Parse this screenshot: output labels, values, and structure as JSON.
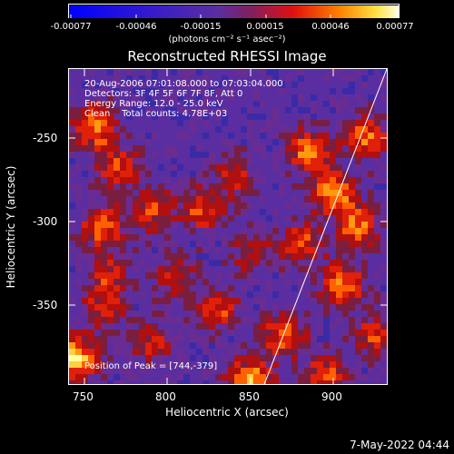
{
  "colorbar": {
    "tick_labels": [
      "-0.00077",
      "-0.00046",
      "-0.00015",
      "0.00015",
      "0.00046",
      "0.00077"
    ],
    "unit_label": "(photons cm⁻² s⁻¹ asec⁻²)"
  },
  "plot": {
    "title": "Reconstructed RHESSI Image",
    "xlabel": "Heliocentric X (arcsec)",
    "ylabel": "Heliocentric Y (arcsec)",
    "x_ticks": [
      "750",
      "800",
      "850",
      "900"
    ],
    "y_ticks": [
      "-250",
      "-300",
      "-350"
    ],
    "info_lines": [
      "20-Aug-2006 07:01:08.000 to 07:03:04.000",
      "Detectors: 3F 4F 5F 6F 7F 8F, Att 0",
      "Energy Range: 12.0 - 25.0 keV",
      "Clean    Total counts: 4.78E+03"
    ],
    "peak_label": "Position of Peak = [744,-379]"
  },
  "footer": {
    "date": "7-May-2022 04:44"
  },
  "colors": {
    "background": "#000000",
    "negative_low": "#0000ff",
    "purple": "#5a2ea0",
    "red": "#cc1010",
    "orange": "#ff7a00",
    "yellow": "#ffff90"
  },
  "chart_data": {
    "type": "heatmap",
    "xlim": [
      740,
      932
    ],
    "ylim": [
      -395,
      -205
    ],
    "limb_line": {
      "x": [
        858,
        932
      ],
      "y": [
        -395,
        -205
      ]
    },
    "peak": {
      "x": 744,
      "y": -379
    }
  }
}
